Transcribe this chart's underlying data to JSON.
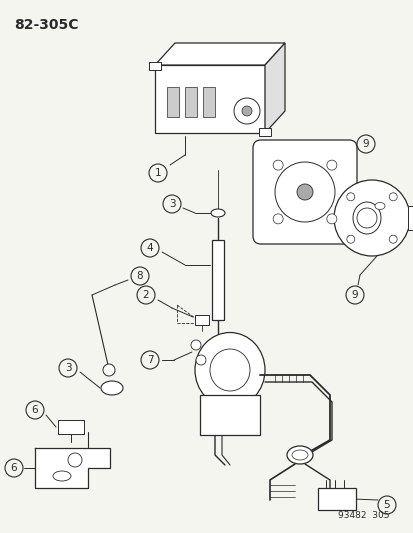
{
  "title_code": "82–305C",
  "footer_code": "93482  305",
  "bg_color": "#f5f5f0",
  "line_color": "#2a2a2a",
  "label_color": "#1a1a1a",
  "title_fontsize": 10,
  "label_fontsize": 7.5,
  "footer_fontsize": 6.5
}
